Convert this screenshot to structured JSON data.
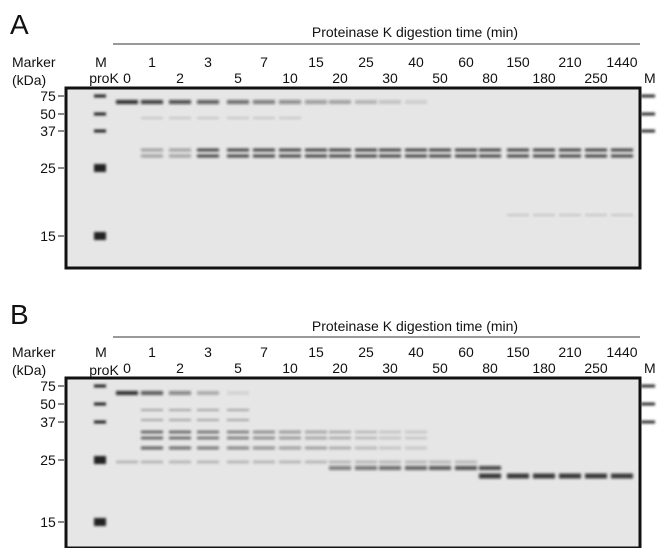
{
  "panels": [
    {
      "label": "A",
      "title": "Proteinase K digestion time (min)",
      "marker_label": "Marker",
      "marker_unit": "(kDa)",
      "marker_lane": "M",
      "prok_lane": "proK",
      "right_marker": "M",
      "times": [
        "0",
        "1",
        "2",
        "3",
        "5",
        "7",
        "10",
        "15",
        "20",
        "25",
        "30",
        "40",
        "50",
        "60",
        "80",
        "150",
        "180",
        "210",
        "250",
        "1440"
      ],
      "marker_kda": [
        "75",
        "50",
        "37",
        "25",
        "15"
      ]
    },
    {
      "label": "B",
      "title": "Proteinase K digestion time (min)",
      "marker_label": "Marker",
      "marker_unit": "(kDa)",
      "marker_lane": "M",
      "prok_lane": "proK",
      "right_marker": "M",
      "times": [
        "0",
        "1",
        "2",
        "3",
        "5",
        "7",
        "10",
        "15",
        "20",
        "25",
        "30",
        "40",
        "50",
        "60",
        "80",
        "150",
        "180",
        "210",
        "250",
        "1440"
      ],
      "marker_kda": [
        "75",
        "50",
        "37",
        "25",
        "15"
      ]
    }
  ]
}
